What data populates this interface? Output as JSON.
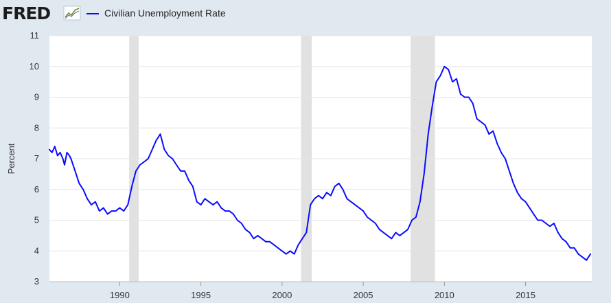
{
  "brand": {
    "logo_text": "FRED"
  },
  "colors": {
    "series": "#0b0bff",
    "recession": "#e1e1e1",
    "plot_bg": "#ffffff",
    "page_bg": "#e1e9f0",
    "grid": "#e6e6e6"
  },
  "chart_data": {
    "type": "line",
    "title": "",
    "xlabel": "",
    "ylabel": "Percent",
    "xlim": [
      1985.67,
      2019.08
    ],
    "ylim": [
      3,
      11
    ],
    "y_ticks": [
      3,
      4,
      5,
      6,
      7,
      8,
      9,
      10,
      11
    ],
    "x_ticks": [
      1990,
      1995,
      2000,
      2005,
      2010,
      2015
    ],
    "grid": "horizontal",
    "legend": "top-left",
    "recessions": [
      [
        1990.58,
        1991.17
      ],
      [
        2001.17,
        2001.83
      ],
      [
        2007.92,
        2009.42
      ]
    ],
    "series": [
      {
        "name": "Civilian Unemployment Rate",
        "x": [
          1985.67,
          1985.83,
          1986.0,
          1986.17,
          1986.33,
          1986.5,
          1986.6,
          1986.75,
          1986.9,
          1987.0,
          1987.25,
          1987.5,
          1987.75,
          1988.0,
          1988.25,
          1988.5,
          1988.75,
          1989.0,
          1989.25,
          1989.5,
          1989.75,
          1990.0,
          1990.25,
          1990.5,
          1990.75,
          1991.0,
          1991.25,
          1991.5,
          1991.75,
          1992.0,
          1992.25,
          1992.5,
          1992.75,
          1993.0,
          1993.25,
          1993.5,
          1993.75,
          1994.0,
          1994.25,
          1994.5,
          1994.75,
          1995.0,
          1995.25,
          1995.5,
          1995.75,
          1996.0,
          1996.25,
          1996.5,
          1996.75,
          1997.0,
          1997.25,
          1997.5,
          1997.75,
          1998.0,
          1998.25,
          1998.5,
          1998.75,
          1999.0,
          1999.25,
          1999.5,
          1999.75,
          2000.0,
          2000.25,
          2000.5,
          2000.75,
          2001.0,
          2001.25,
          2001.5,
          2001.75,
          2002.0,
          2002.25,
          2002.5,
          2002.75,
          2003.0,
          2003.25,
          2003.5,
          2003.75,
          2004.0,
          2004.25,
          2004.5,
          2004.75,
          2005.0,
          2005.25,
          2005.5,
          2005.75,
          2006.0,
          2006.25,
          2006.5,
          2006.75,
          2007.0,
          2007.25,
          2007.5,
          2007.75,
          2008.0,
          2008.25,
          2008.5,
          2008.75,
          2009.0,
          2009.25,
          2009.5,
          2009.75,
          2010.0,
          2010.25,
          2010.5,
          2010.75,
          2011.0,
          2011.25,
          2011.5,
          2011.75,
          2012.0,
          2012.25,
          2012.5,
          2012.75,
          2013.0,
          2013.25,
          2013.5,
          2013.75,
          2014.0,
          2014.25,
          2014.5,
          2014.75,
          2015.0,
          2015.25,
          2015.5,
          2015.75,
          2016.0,
          2016.25,
          2016.5,
          2016.75,
          2017.0,
          2017.25,
          2017.5,
          2017.75,
          2018.0,
          2018.25,
          2018.5,
          2018.75,
          2019.0
        ],
        "values": [
          7.3,
          7.2,
          7.4,
          7.1,
          7.2,
          7.0,
          6.8,
          7.2,
          7.1,
          7.0,
          6.6,
          6.2,
          6.0,
          5.7,
          5.5,
          5.6,
          5.3,
          5.4,
          5.2,
          5.3,
          5.3,
          5.4,
          5.3,
          5.5,
          6.1,
          6.6,
          6.8,
          6.9,
          7.0,
          7.3,
          7.6,
          7.8,
          7.3,
          7.1,
          7.0,
          6.8,
          6.6,
          6.6,
          6.3,
          6.1,
          5.6,
          5.5,
          5.7,
          5.6,
          5.5,
          5.6,
          5.4,
          5.3,
          5.3,
          5.2,
          5.0,
          4.9,
          4.7,
          4.6,
          4.4,
          4.5,
          4.4,
          4.3,
          4.3,
          4.2,
          4.1,
          4.0,
          3.9,
          4.0,
          3.9,
          4.2,
          4.4,
          4.6,
          5.5,
          5.7,
          5.8,
          5.7,
          5.9,
          5.8,
          6.1,
          6.2,
          6.0,
          5.7,
          5.6,
          5.5,
          5.4,
          5.3,
          5.1,
          5.0,
          4.9,
          4.7,
          4.6,
          4.5,
          4.4,
          4.6,
          4.5,
          4.6,
          4.7,
          5.0,
          5.1,
          5.6,
          6.5,
          7.8,
          8.7,
          9.5,
          9.7,
          10.0,
          9.9,
          9.5,
          9.6,
          9.1,
          9.0,
          9.0,
          8.8,
          8.3,
          8.2,
          8.1,
          7.8,
          7.9,
          7.5,
          7.2,
          7.0,
          6.6,
          6.2,
          5.9,
          5.7,
          5.6,
          5.4,
          5.2,
          5.0,
          5.0,
          4.9,
          4.8,
          4.9,
          4.6,
          4.4,
          4.3,
          4.1,
          4.1,
          3.9,
          3.8,
          3.7,
          3.9
        ]
      }
    ]
  }
}
